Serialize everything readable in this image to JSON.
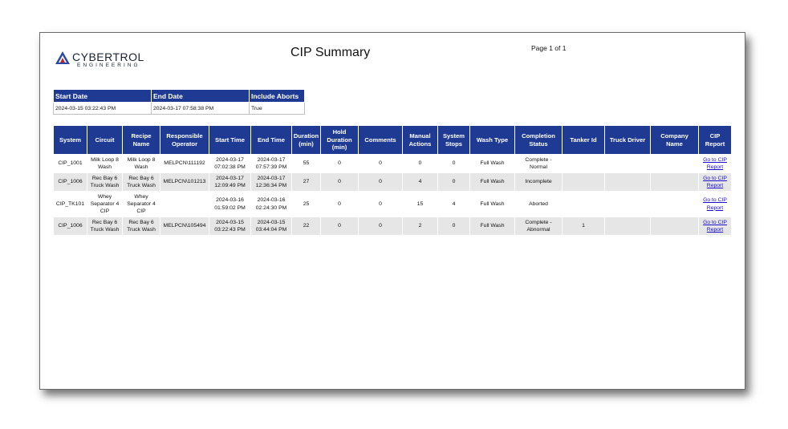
{
  "header": {
    "logo_word": "CYBERTROL",
    "logo_sub": "ENGINEERING",
    "title": "CIP Summary",
    "page_label": "Page 1 of 1"
  },
  "params": {
    "headers": [
      "Start Date",
      "End Date",
      "Include Aborts"
    ],
    "values": [
      "2024-03-15 03:22:43 PM",
      "2024-03-17 07:58:38 PM",
      "True"
    ]
  },
  "table": {
    "columns": [
      "System",
      "Circuit",
      "Recipe Name",
      "Responsible Operator",
      "Start Time",
      "End Time",
      "Duration (min)",
      "Hold Duration (min)",
      "Comments",
      "Manual Actions",
      "System Stops",
      "Wash Type",
      "Completion Status",
      "Tanker Id",
      "Truck Driver",
      "Company Name",
      "CIP Report"
    ],
    "rows": [
      [
        "CIP_1001",
        "Milk Loop 8 Wash",
        "Milk Loop 8 Wash",
        "MELPCN\\111192",
        "2024-03-17 07:02:38 PM",
        "2024-03-17 07:57:39 PM",
        "55",
        "0",
        "0",
        "0",
        "0",
        "Full Wash",
        "Complete - Normal",
        "",
        "",
        "",
        "Go to CIP Report"
      ],
      [
        "CIP_1006",
        "Rec Bay 6 Truck Wash",
        "Rec Bay 6 Truck Wash",
        "MELPCN\\101213",
        "2024-03-17 12:09:49 PM",
        "2024-03-17 12:36:34 PM",
        "27",
        "0",
        "0",
        "4",
        "0",
        "Full Wash",
        "Incomplete",
        "",
        "",
        "",
        "Go to CIP Report"
      ],
      [
        "CIP_TK101",
        "Whey Separator 4 CIP",
        "Whey Separator 4 CIP",
        "",
        "2024-03-16 01:59:02 PM",
        "2024-03-16 02:24:30 PM",
        "25",
        "0",
        "0",
        "15",
        "4",
        "Full Wash",
        "Aborted",
        "",
        "",
        "",
        "Go to CIP Report"
      ],
      [
        "CIP_1006",
        "Rec Bay 6 Truck Wash",
        "Rec Bay 6 Truck Wash",
        "MELPCN\\105494",
        "2024-03-15 03:22:43 PM",
        "2024-03-15 03:44:04 PM",
        "22",
        "0",
        "0",
        "2",
        "0",
        "Full Wash",
        "Complete - Abnormal",
        "1",
        "",
        "",
        "Go to CIP Report"
      ]
    ]
  },
  "colors": {
    "header_blue": "#1f3a93",
    "stripe_gray": "#e6e6e6",
    "link_blue": "#1a0dcc"
  }
}
